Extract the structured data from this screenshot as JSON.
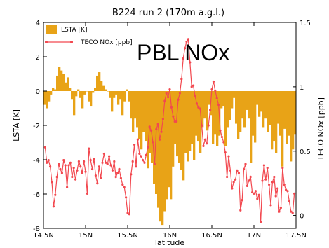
{
  "chart_data": {
    "type": "bar",
    "title": "B224 run 2 (170m a.g.l.)",
    "annotation": "PBL NOx",
    "xlabel": "latitude",
    "ylabel": "LSTA [K]",
    "ylabel_right": "TECO NOx [ppb]",
    "xlim": [
      14.5,
      17.5
    ],
    "ylim": [
      -8,
      4
    ],
    "ylim_right": [
      -0.1,
      1.5
    ],
    "x_ticks": [
      14.5,
      15,
      15.5,
      16,
      16.5,
      17,
      17.5
    ],
    "x_tick_labels": [
      "14.5N",
      "15N",
      "15.5N",
      "16N",
      "16.5N",
      "17N",
      "17.5N"
    ],
    "y_ticks": [
      -8,
      -6,
      -4,
      -2,
      0,
      2,
      4
    ],
    "y_tick_labels": [
      "-8",
      "-6",
      "-4",
      "-2",
      "0",
      "2",
      "4"
    ],
    "y_right_ticks": [
      0,
      0.5,
      1,
      1.5
    ],
    "y_right_tick_labels": [
      "0",
      "0.5",
      "1",
      "1.5"
    ],
    "legend": [
      {
        "label": "LSTA [K]",
        "kind": "bar",
        "color": "#e8a317"
      },
      {
        "label": "TECO NOx [ppb]",
        "kind": "line",
        "color": "#f2484f"
      }
    ],
    "legend_position": "top-left",
    "grid": false,
    "bar_color": "#e8a317",
    "line_color": "#f2484f",
    "bar_x_start": 14.5,
    "bar_x_step": 0.025,
    "bars": [
      -0.8,
      -1.0,
      -0.6,
      -0.2,
      0.2,
      0.1,
      0.9,
      1.4,
      1.2,
      1.0,
      0.5,
      0.8,
      0.2,
      -0.5,
      -1.4,
      -0.3,
      0.1,
      -0.4,
      -1.0,
      -0.2,
      0.0,
      -0.6,
      -0.9,
      -0.1,
      0.2,
      0.9,
      1.1,
      0.6,
      0.3,
      0.1,
      0.0,
      -0.4,
      -1.2,
      -0.4,
      -0.2,
      -0.8,
      -0.5,
      -1.4,
      -0.6,
      0.1,
      -0.6,
      -1.6,
      -2.4,
      -1.6,
      -2.1,
      -2.8,
      -3.4,
      -2.4,
      -2.9,
      -4.5,
      -3.6,
      -4.2,
      -5.4,
      -6.0,
      -6.8,
      -7.6,
      -7.8,
      -7.0,
      -6.3,
      -5.6,
      -6.3,
      -4.4,
      -3.1,
      -3.8,
      -4.2,
      -4.6,
      -5.2,
      -3.6,
      -4.1,
      -3.5,
      -3.1,
      -4.0,
      -2.6,
      -2.9,
      -3.6,
      -2.1,
      -1.6,
      -2.3,
      -0.8,
      -1.4,
      -3.1,
      -2.5,
      -3.2,
      -2.6,
      -1.0,
      -0.9,
      -3.2,
      -2.1,
      -1.7,
      -1.0,
      -0.4,
      -1.9,
      -2.8,
      -2.4,
      -1.6,
      -2.1,
      -1.1,
      -1.6,
      -4.2,
      -2.6,
      -3.0,
      -0.8,
      -1.5,
      -1.2,
      -2.1,
      -1.6,
      -2.4,
      -2.0,
      -3.4,
      -2.9,
      -3.6,
      -1.9,
      -2.6,
      -4.4,
      -2.2,
      -3.1,
      -2.6,
      -4.1,
      -3.4,
      -2.5
    ],
    "line_x": [
      14.52,
      14.54,
      14.56,
      14.58,
      14.6,
      14.62,
      14.64,
      14.66,
      14.68,
      14.7,
      14.72,
      14.74,
      14.76,
      14.78,
      14.8,
      14.82,
      14.84,
      14.86,
      14.88,
      14.9,
      14.92,
      14.94,
      14.96,
      14.98,
      15.0,
      15.02,
      15.04,
      15.06,
      15.08,
      15.1,
      15.12,
      15.14,
      15.16,
      15.18,
      15.2,
      15.22,
      15.24,
      15.26,
      15.28,
      15.3,
      15.32,
      15.34,
      15.36,
      15.38,
      15.4,
      15.42,
      15.44,
      15.46,
      15.48,
      15.5,
      15.52,
      15.54,
      15.56,
      15.58,
      15.6,
      15.62,
      15.64,
      15.66,
      15.68,
      15.7,
      15.72,
      15.74,
      15.76,
      15.78,
      15.8,
      15.82,
      15.84,
      15.86,
      15.88,
      15.9,
      15.92,
      15.94,
      15.96,
      15.98,
      16.0,
      16.02,
      16.04,
      16.06,
      16.08,
      16.1,
      16.12,
      16.14,
      16.16,
      16.18,
      16.2,
      16.22,
      16.24,
      16.26,
      16.28,
      16.3,
      16.32,
      16.34,
      16.36,
      16.38,
      16.4,
      16.42,
      16.44,
      16.46,
      16.48,
      16.5,
      16.52,
      16.54,
      16.56,
      16.58,
      16.6,
      16.62,
      16.64,
      16.66,
      16.68,
      16.7,
      16.72,
      16.74,
      16.76,
      16.78,
      16.8,
      16.82,
      16.84,
      16.86,
      16.88,
      16.9,
      16.92,
      16.94,
      16.96,
      16.98,
      17.0,
      17.02,
      17.04,
      17.06,
      17.08,
      17.1,
      17.12,
      17.14,
      17.16,
      17.18,
      17.2,
      17.22,
      17.24,
      17.26,
      17.28,
      17.3,
      17.32,
      17.34,
      17.36,
      17.38,
      17.4,
      17.42,
      17.44,
      17.46,
      17.48
    ],
    "line_y": [
      0.53,
      0.41,
      0.43,
      0.38,
      0.26,
      0.07,
      0.16,
      0.3,
      0.4,
      0.36,
      0.33,
      0.43,
      0.39,
      0.22,
      0.39,
      0.41,
      0.3,
      0.37,
      0.28,
      0.35,
      0.42,
      0.38,
      0.33,
      0.42,
      0.34,
      0.17,
      0.52,
      0.43,
      0.36,
      0.44,
      0.31,
      0.25,
      0.38,
      0.29,
      0.41,
      0.48,
      0.41,
      0.4,
      0.46,
      0.39,
      0.35,
      0.42,
      0.3,
      0.33,
      0.36,
      0.29,
      0.24,
      0.22,
      0.14,
      0.02,
      0.01,
      0.32,
      0.42,
      0.55,
      0.38,
      0.59,
      0.48,
      0.46,
      0.43,
      0.41,
      0.47,
      0.53,
      0.69,
      0.66,
      0.57,
      0.4,
      0.67,
      0.71,
      0.59,
      0.65,
      0.75,
      0.89,
      0.95,
      0.92,
      0.98,
      0.84,
      0.77,
      0.73,
      0.73,
      0.9,
      0.95,
      1.06,
      1.22,
      1.3,
      1.35,
      1.37,
      1.19,
      1.0,
      1.01,
      0.93,
      0.87,
      0.84,
      0.83,
      0.7,
      0.54,
      0.59,
      0.56,
      0.7,
      0.82,
      0.98,
      1.04,
      0.97,
      0.91,
      0.86,
      0.66,
      0.61,
      0.57,
      0.49,
      0.3,
      0.46,
      0.35,
      0.21,
      0.26,
      0.28,
      0.35,
      0.33,
      0.04,
      0.12,
      0.36,
      0.4,
      0.23,
      0.27,
      0.3,
      0.18,
      0.17,
      0.19,
      0.13,
      0.16,
      -0.05,
      0.27,
      0.39,
      0.28,
      0.37,
      0.24,
      0.08,
      0.26,
      0.3,
      0.15,
      0.21,
      0.03,
      0.06,
      0.37,
      0.24,
      0.2,
      0.19,
      0.11,
      0.03,
      0.02,
      0.17
    ]
  }
}
